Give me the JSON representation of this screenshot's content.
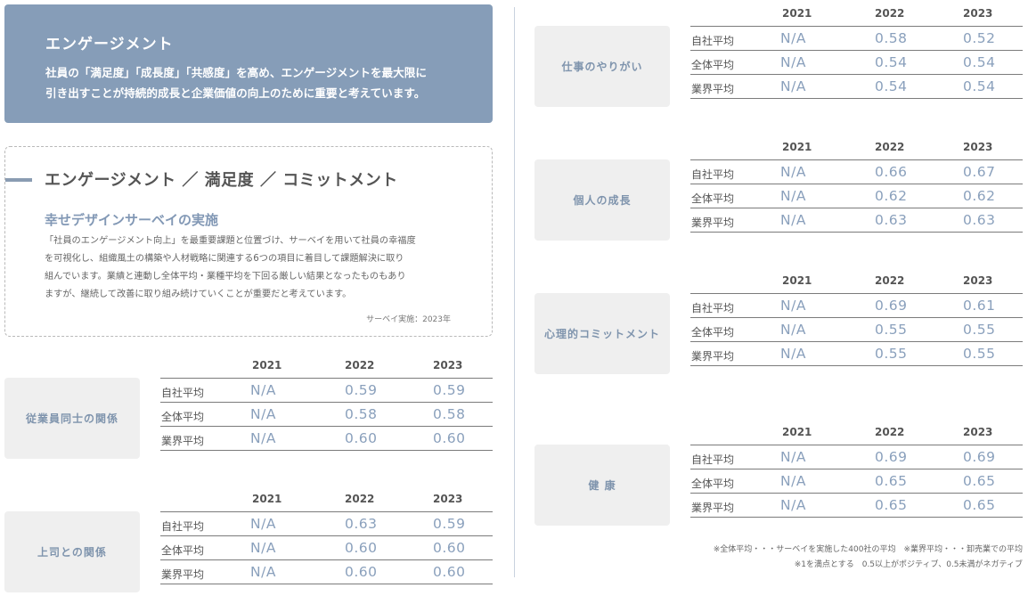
{
  "hero": {
    "title": "エンゲージメント",
    "line1": "社員の「満足度」「成長度」「共感度」を高め、エンゲージメントを最大限に",
    "line2": "引き出すことが持続的成長と企業価値の向上のために重要と考えています。"
  },
  "description": {
    "heading": "エンゲージメント ／ 満足度 ／ コミットメント",
    "subheading": "幸せデザインサーベイの実施",
    "body": [
      "「社員のエンゲージメント向上」を最重要課題と位置づけ、サーベイを用いて社員の幸福度",
      "を可視化し、組織風土の構築や人材戦略に関連する6つの項目に着目して課題解決に取り",
      "組んでいます。業績と連動し全体平均・業種平均を下回る厳しい結果となったものもあり",
      "ますが、継続して改善に取り組み続けていくことが重要だと考えています。"
    ],
    "note": "サーベイ実施：2023年"
  },
  "years": [
    "2021",
    "2022",
    "2023"
  ],
  "row_labels": [
    "自社平均",
    "全体平均",
    "業界平均"
  ],
  "categories": [
    {
      "label": "従業員同士の関係",
      "values": [
        [
          "N/A",
          "0.59",
          "0.59"
        ],
        [
          "N/A",
          "0.58",
          "0.58"
        ],
        [
          "N/A",
          "0.60",
          "0.60"
        ]
      ]
    },
    {
      "label": "上司との関係",
      "values": [
        [
          "N/A",
          "0.63",
          "0.59"
        ],
        [
          "N/A",
          "0.60",
          "0.60"
        ],
        [
          "N/A",
          "0.60",
          "0.60"
        ]
      ]
    },
    {
      "label": "仕事のやりがい",
      "values": [
        [
          "N/A",
          "0.58",
          "0.52"
        ],
        [
          "N/A",
          "0.54",
          "0.54"
        ],
        [
          "N/A",
          "0.54",
          "0.54"
        ]
      ]
    },
    {
      "label": "個人の成長",
      "values": [
        [
          "N/A",
          "0.66",
          "0.67"
        ],
        [
          "N/A",
          "0.62",
          "0.62"
        ],
        [
          "N/A",
          "0.63",
          "0.63"
        ]
      ]
    },
    {
      "label": "心理的コミットメント",
      "values": [
        [
          "N/A",
          "0.69",
          "0.61"
        ],
        [
          "N/A",
          "0.55",
          "0.55"
        ],
        [
          "N/A",
          "0.55",
          "0.55"
        ]
      ]
    },
    {
      "label": "健 康",
      "values": [
        [
          "N/A",
          "0.69",
          "0.69"
        ],
        [
          "N/A",
          "0.65",
          "0.65"
        ],
        [
          "N/A",
          "0.65",
          "0.65"
        ]
      ]
    }
  ],
  "footnotes": [
    "※全体平均・・・サーベイを実施した400社の平均　※業界平均・・・卸売業での平均",
    "※1を満点とする　0.5以上がポジティブ、0.5未満がネガティブ"
  ]
}
